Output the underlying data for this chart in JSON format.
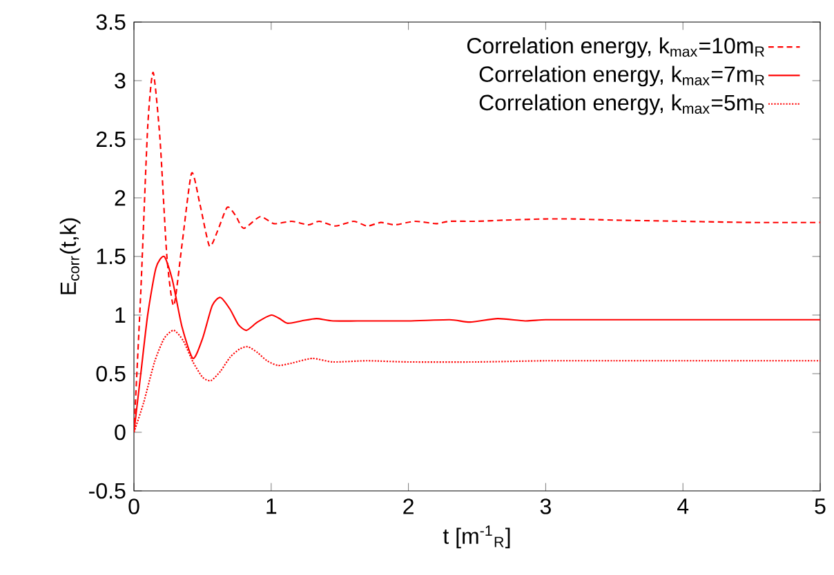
{
  "chart_data": {
    "type": "line",
    "xlabel": "t [m$^{-1}$$_{R}$]",
    "ylabel": "E$_{corr}$(t,k)",
    "xlim": [
      0,
      5
    ],
    "ylim": [
      -0.5,
      3.5
    ],
    "xticks": [
      0,
      1,
      2,
      3,
      4,
      5
    ],
    "yticks": [
      -0.5,
      0,
      0.5,
      1,
      1.5,
      2,
      2.5,
      3,
      3.5
    ],
    "legend": "top right",
    "grid": false,
    "series": [
      {
        "name": "Correlation energy, k$_{max}$=10m$_{R}$",
        "color": "#ff0000",
        "line_style": "dashed",
        "x": [
          0,
          0.05,
          0.1,
          0.14,
          0.19,
          0.24,
          0.29,
          0.35,
          0.42,
          0.48,
          0.55,
          0.61,
          0.68,
          0.74,
          0.8,
          0.92,
          1.02,
          1.15,
          1.27,
          1.35,
          1.47,
          1.6,
          1.7,
          1.8,
          1.9,
          2.05,
          2.2,
          2.3,
          2.5,
          2.7,
          3.0,
          3.2,
          3.5,
          4.0,
          4.5,
          5.0
        ],
        "values": [
          0,
          1.2,
          2.6,
          3.07,
          2.5,
          1.5,
          1.08,
          1.6,
          2.21,
          1.95,
          1.59,
          1.72,
          1.92,
          1.85,
          1.74,
          1.84,
          1.78,
          1.8,
          1.77,
          1.8,
          1.76,
          1.8,
          1.76,
          1.79,
          1.77,
          1.8,
          1.78,
          1.8,
          1.8,
          1.81,
          1.82,
          1.82,
          1.81,
          1.8,
          1.79,
          1.79
        ]
      },
      {
        "name": "Correlation energy, k$_{max}$=7m$_{R}$",
        "color": "#ff0000",
        "line_style": "solid",
        "x": [
          0,
          0.05,
          0.1,
          0.16,
          0.22,
          0.28,
          0.35,
          0.43,
          0.5,
          0.57,
          0.63,
          0.7,
          0.76,
          0.82,
          0.9,
          1.0,
          1.06,
          1.12,
          1.22,
          1.33,
          1.45,
          1.7,
          2.0,
          2.3,
          2.45,
          2.65,
          2.85,
          3.0,
          3.3,
          3.6,
          4.0,
          4.5,
          5.0
        ],
        "values": [
          0,
          0.5,
          1.0,
          1.4,
          1.5,
          1.3,
          0.9,
          0.63,
          0.8,
          1.08,
          1.15,
          1.05,
          0.92,
          0.87,
          0.94,
          1.0,
          0.97,
          0.93,
          0.95,
          0.97,
          0.95,
          0.95,
          0.95,
          0.96,
          0.94,
          0.97,
          0.95,
          0.96,
          0.96,
          0.96,
          0.96,
          0.96,
          0.96
        ]
      },
      {
        "name": "Correlation energy, k$_{max}$=5m$_{R}$",
        "color": "#ff0000",
        "line_style": "dotted",
        "x": [
          0,
          0.07,
          0.15,
          0.22,
          0.29,
          0.36,
          0.43,
          0.5,
          0.56,
          0.63,
          0.7,
          0.77,
          0.83,
          0.9,
          0.97,
          1.05,
          1.15,
          1.3,
          1.45,
          1.7,
          2.0,
          2.5,
          3.0,
          3.5,
          4.0,
          4.5,
          5.0
        ],
        "values": [
          0,
          0.25,
          0.6,
          0.8,
          0.87,
          0.78,
          0.6,
          0.47,
          0.44,
          0.52,
          0.64,
          0.71,
          0.73,
          0.68,
          0.61,
          0.57,
          0.59,
          0.63,
          0.6,
          0.61,
          0.6,
          0.6,
          0.61,
          0.61,
          0.61,
          0.61,
          0.61
        ]
      }
    ]
  }
}
